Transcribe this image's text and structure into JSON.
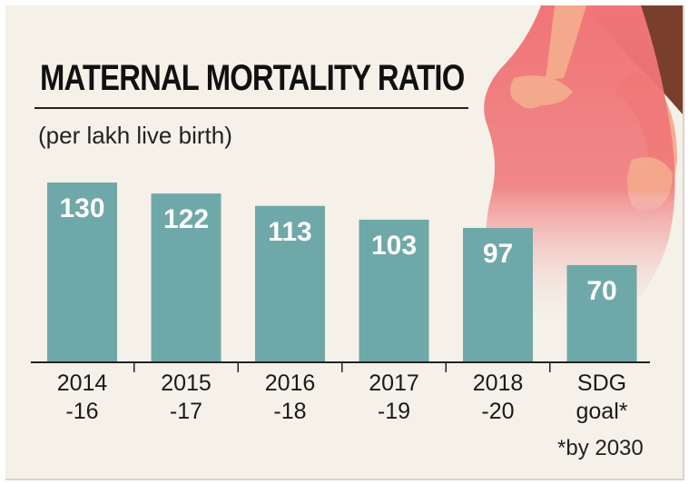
{
  "colors": {
    "background": "#f5f1e9",
    "bar": "#6fa8a8",
    "figure_body": "#f07577",
    "figure_skin": "#f4a88c",
    "figure_hair": "#7a3f2c"
  },
  "illustration": {
    "icon": "pregnant-woman-illustration"
  },
  "chart_data": {
    "type": "bar",
    "title": "MATERNAL MORTALITY RATIO",
    "subtitle": "(per lakh live birth)",
    "categories": [
      [
        "2014",
        "-16"
      ],
      [
        "2015",
        "-17"
      ],
      [
        "2016",
        "-18"
      ],
      [
        "2017",
        "-19"
      ],
      [
        "2018",
        "-20"
      ],
      [
        "SDG",
        "goal*"
      ]
    ],
    "values": [
      130,
      122,
      113,
      103,
      97,
      70
    ],
    "footnote": "*by 2030",
    "ylim": [
      0,
      140
    ],
    "grid": false,
    "legend": "none",
    "xlabel": "",
    "ylabel": ""
  }
}
